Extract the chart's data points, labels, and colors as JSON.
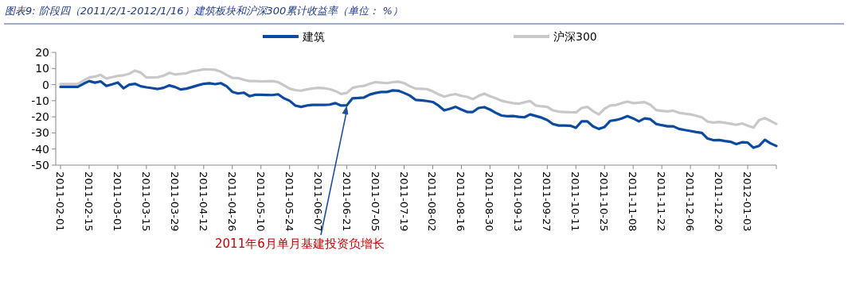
{
  "chart_data": {
    "type": "line",
    "title": "图表9:  阶段四（2011/2/1-2012/1/16）建筑板块和沪深300累计收益率（单位：  %）",
    "categories": [
      "2011-02-01",
      null,
      null,
      null,
      null,
      "2011-02-15",
      null,
      null,
      null,
      null,
      "2011-03-01",
      null,
      null,
      null,
      null,
      "2011-03-15",
      null,
      null,
      null,
      null,
      "2011-03-29",
      null,
      null,
      null,
      null,
      "2011-04-12",
      null,
      null,
      null,
      null,
      "2011-04-26",
      null,
      null,
      null,
      null,
      "2011-05-10",
      null,
      null,
      null,
      null,
      "2011-05-24",
      null,
      null,
      null,
      null,
      "2011-06-07",
      null,
      null,
      null,
      null,
      "2011-06-21",
      null,
      null,
      null,
      null,
      "2011-07-05",
      null,
      null,
      null,
      null,
      "2011-07-19",
      null,
      null,
      null,
      null,
      "2011-08-02",
      null,
      null,
      null,
      null,
      "2011-08-16",
      null,
      null,
      null,
      null,
      "2011-08-30",
      null,
      null,
      null,
      null,
      "2011-09-13",
      null,
      null,
      null,
      null,
      "2011-09-27",
      null,
      null,
      null,
      null,
      "2011-10-11",
      null,
      null,
      null,
      null,
      "2011-10-25",
      null,
      null,
      null,
      null,
      "2011-11-08",
      null,
      null,
      null,
      null,
      "2011-11-22",
      null,
      null,
      null,
      null,
      "2011-12-06",
      null,
      null,
      null,
      null,
      "2011-12-20",
      null,
      null,
      null,
      null,
      "2012-01-03",
      null,
      null,
      null,
      null,
      null
    ],
    "series": [
      {
        "name": "建筑",
        "color": "#0b4a9e",
        "values": [
          -1.4,
          -1.4,
          -1.4,
          -1.4,
          0.5,
          2.2,
          1.2,
          2,
          -0.8,
          0.2,
          1.3,
          -2.3,
          0,
          0.5,
          -1,
          -1.7,
          -2.2,
          -2.7,
          -2,
          -0.5,
          -1.5,
          -3,
          -2.5,
          -1.5,
          -0.4,
          0.5,
          0.8,
          0.3,
          0.9,
          -1,
          -4.5,
          -5.5,
          -5,
          -7.2,
          -6.3,
          -6.3,
          -6.4,
          -6.5,
          -6,
          -8.5,
          -10,
          -13,
          -13.8,
          -13,
          -12.6,
          -12.6,
          -12.6,
          -12.4,
          -11.5,
          -13,
          -12.8,
          -8.5,
          -8.3,
          -8,
          -6.2,
          -5.2,
          -4.6,
          -4.6,
          -3.6,
          -3.8,
          -5.2,
          -6.8,
          -9.5,
          -9.8,
          -10.2,
          -10.8,
          -13,
          -16,
          -15,
          -13.8,
          -15.5,
          -17,
          -17,
          -14.5,
          -14,
          -15.5,
          -17.5,
          -19.2,
          -19.6,
          -19.5,
          -20,
          -20.3,
          -18.5,
          -19.5,
          -20.5,
          -22,
          -24.5,
          -25.4,
          -25.4,
          -25.5,
          -26.8,
          -22.8,
          -22.8,
          -26,
          -27.5,
          -26.3,
          -22.5,
          -22,
          -21,
          -19.6,
          -21,
          -22.8,
          -21,
          -21.5,
          -24.4,
          -25.2,
          -25.9,
          -25.9,
          -27.5,
          -28.2,
          -28.8,
          -29.5,
          -30,
          -33.5,
          -34.5,
          -34.4,
          -35,
          -35.5,
          -36.9,
          -35.8,
          -36,
          -39.2,
          -38,
          -34.3,
          -36.5,
          -38.1
        ]
      },
      {
        "name": "沪深300",
        "color": "#c8c8c8",
        "values": [
          0.3,
          0.3,
          0.3,
          0.3,
          2.5,
          4.4,
          5,
          6,
          3.8,
          4.6,
          5.4,
          5.8,
          6.7,
          8.7,
          7.5,
          4.4,
          4.4,
          4.6,
          5.5,
          7.3,
          6.3,
          6.7,
          7,
          8.3,
          8.8,
          9.5,
          9.4,
          9.2,
          8,
          6,
          4.2,
          4.1,
          3,
          2.2,
          2.2,
          2,
          2.1,
          2.2,
          1.5,
          -0.4,
          -2.5,
          -3.4,
          -3.8,
          -3,
          -2.4,
          -2,
          -2.2,
          -2.8,
          -4,
          -5.8,
          -5.2,
          -2,
          -1.2,
          -0.8,
          0.5,
          1.5,
          1.2,
          0.9,
          1.5,
          1.8,
          0.9,
          -1,
          -2.5,
          -2.6,
          -2.8,
          -4.2,
          -6,
          -7.5,
          -6.5,
          -5.9,
          -7,
          -7.6,
          -9,
          -7,
          -5.6,
          -7.2,
          -8.5,
          -10,
          -10.8,
          -11.5,
          -11.9,
          -11,
          -10.2,
          -13,
          -13.5,
          -13.8,
          -16,
          -16.8,
          -17,
          -17.2,
          -17.3,
          -14.5,
          -13.8,
          -16.5,
          -18.5,
          -15,
          -13,
          -12.7,
          -11.5,
          -10.6,
          -11.5,
          -11.2,
          -10.9,
          -12.5,
          -15.8,
          -16.3,
          -16.7,
          -16.2,
          -17.5,
          -18,
          -18.5,
          -19.3,
          -20.3,
          -23,
          -23.6,
          -23.2,
          -23.7,
          -24.3,
          -25,
          -24.1,
          -25.5,
          -26.7,
          -22,
          -20.8,
          -22.6,
          -24.4
        ]
      }
    ],
    "ylim": [
      -50,
      20
    ],
    "yticks": [
      -50,
      -40,
      -30,
      -20,
      -10,
      0,
      10,
      20
    ],
    "legend": "top",
    "grid": false,
    "annotations": [
      {
        "text": "2011年6月单月基建投资负增长",
        "x": "2011-06-21",
        "y": -12
      }
    ]
  }
}
